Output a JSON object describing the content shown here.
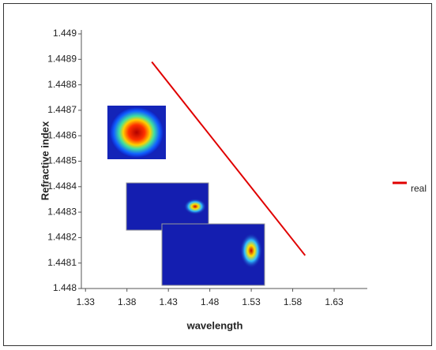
{
  "chart_data": {
    "type": "line",
    "x_label": "wavelength",
    "y_label": "Refractive index",
    "xlim": [
      1.325,
      1.67
    ],
    "xticks": [
      1.33,
      1.38,
      1.43,
      1.48,
      1.53,
      1.58,
      1.63
    ],
    "ylim": [
      1.448,
      1.449
    ],
    "yticks": [
      1.448,
      1.4481,
      1.4482,
      1.4483,
      1.4484,
      1.4485,
      1.4486,
      1.4487,
      1.4488,
      1.4489,
      1.449
    ],
    "x": [
      1.41,
      1.595
    ],
    "series": [
      {
        "name": "real",
        "color": "#e00000",
        "values": [
          1.44889,
          1.44813
        ]
      }
    ],
    "legend": "right"
  }
}
